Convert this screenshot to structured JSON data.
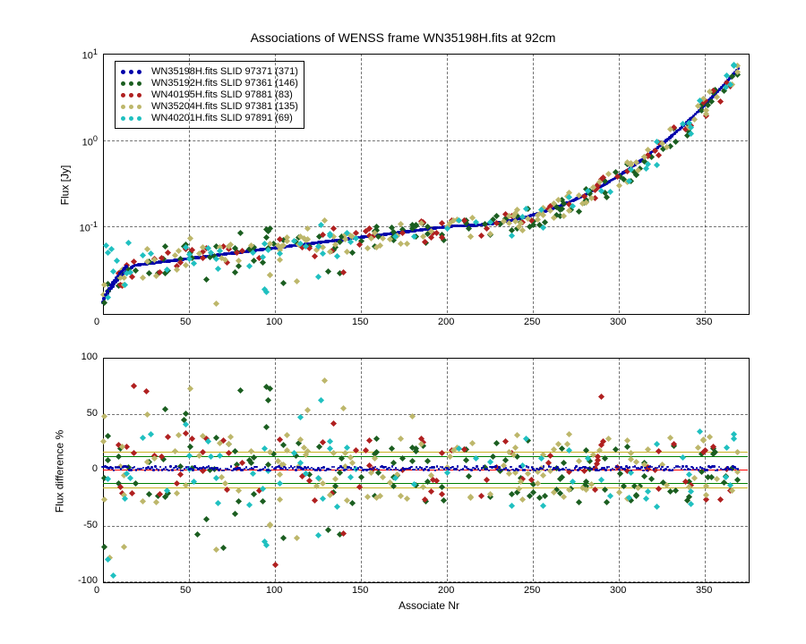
{
  "title": "Associations of WENSS frame WN35198H.fits at 92cm",
  "title_fontsize": 14,
  "background_color": "#ffffff",
  "axis_color": "#000000",
  "grid_color": "#000000",
  "grid_dash": true,
  "figure_width": 900,
  "figure_height": 720,
  "series_colors": {
    "s0": "#0000aa",
    "s1": "#1b5e20",
    "s2": "#b02020",
    "s3": "#bdb76b",
    "s4": "#20c0c0"
  },
  "legend": {
    "position": "upper-left",
    "fontsize": 11,
    "items": [
      {
        "label": "WN35198H.fits SLID 97371 (371)",
        "color": "#0000aa",
        "marker": "circle"
      },
      {
        "label": "WN35192H.fits SLID 97361 (146)",
        "color": "#1b5e20",
        "marker": "diamond"
      },
      {
        "label": "WN40195H.fits SLID 97881 (83)",
        "color": "#b02020",
        "marker": "diamond"
      },
      {
        "label": "WN35204H.fits SLID 97381 (135)",
        "color": "#bdb76b",
        "marker": "diamond"
      },
      {
        "label": "WN40201H.fits SLID 97891 (69)",
        "color": "#20c0c0",
        "marker": "diamond"
      }
    ]
  },
  "top_panel": {
    "type": "scatter",
    "ylabel": "Flux [Jy]",
    "label_fontsize": 12,
    "yscale": "log",
    "xlim": [
      0,
      375
    ],
    "ylim_exp": [
      -2,
      1
    ],
    "xticks": [
      0,
      50,
      100,
      150,
      200,
      250,
      300,
      350
    ],
    "yticks_exp": [
      -1,
      0,
      1
    ],
    "ytick_labels": [
      "10^-1",
      "10^0",
      "10^1"
    ],
    "marker_size": 5
  },
  "bottom_panel": {
    "type": "scatter",
    "ylabel": "Flux difference %",
    "xlabel": "Associate Nr",
    "label_fontsize": 12,
    "yscale": "linear",
    "xlim": [
      0,
      375
    ],
    "ylim": [
      -100,
      100
    ],
    "xticks": [
      0,
      50,
      100,
      150,
      200,
      250,
      300,
      350
    ],
    "yticks": [
      -100,
      -50,
      0,
      50,
      100
    ],
    "reference_lines": [
      {
        "y": 0,
        "color": "#ff0000",
        "width": 1.5
      },
      {
        "y": 12,
        "color": "#008000",
        "width": 1.5
      },
      {
        "y": -12,
        "color": "#008000",
        "width": 1.5
      },
      {
        "y": 16,
        "color": "#c8b020",
        "width": 1.5
      },
      {
        "y": -16,
        "color": "#c8b020",
        "width": 1.5
      }
    ],
    "marker_size": 5
  }
}
